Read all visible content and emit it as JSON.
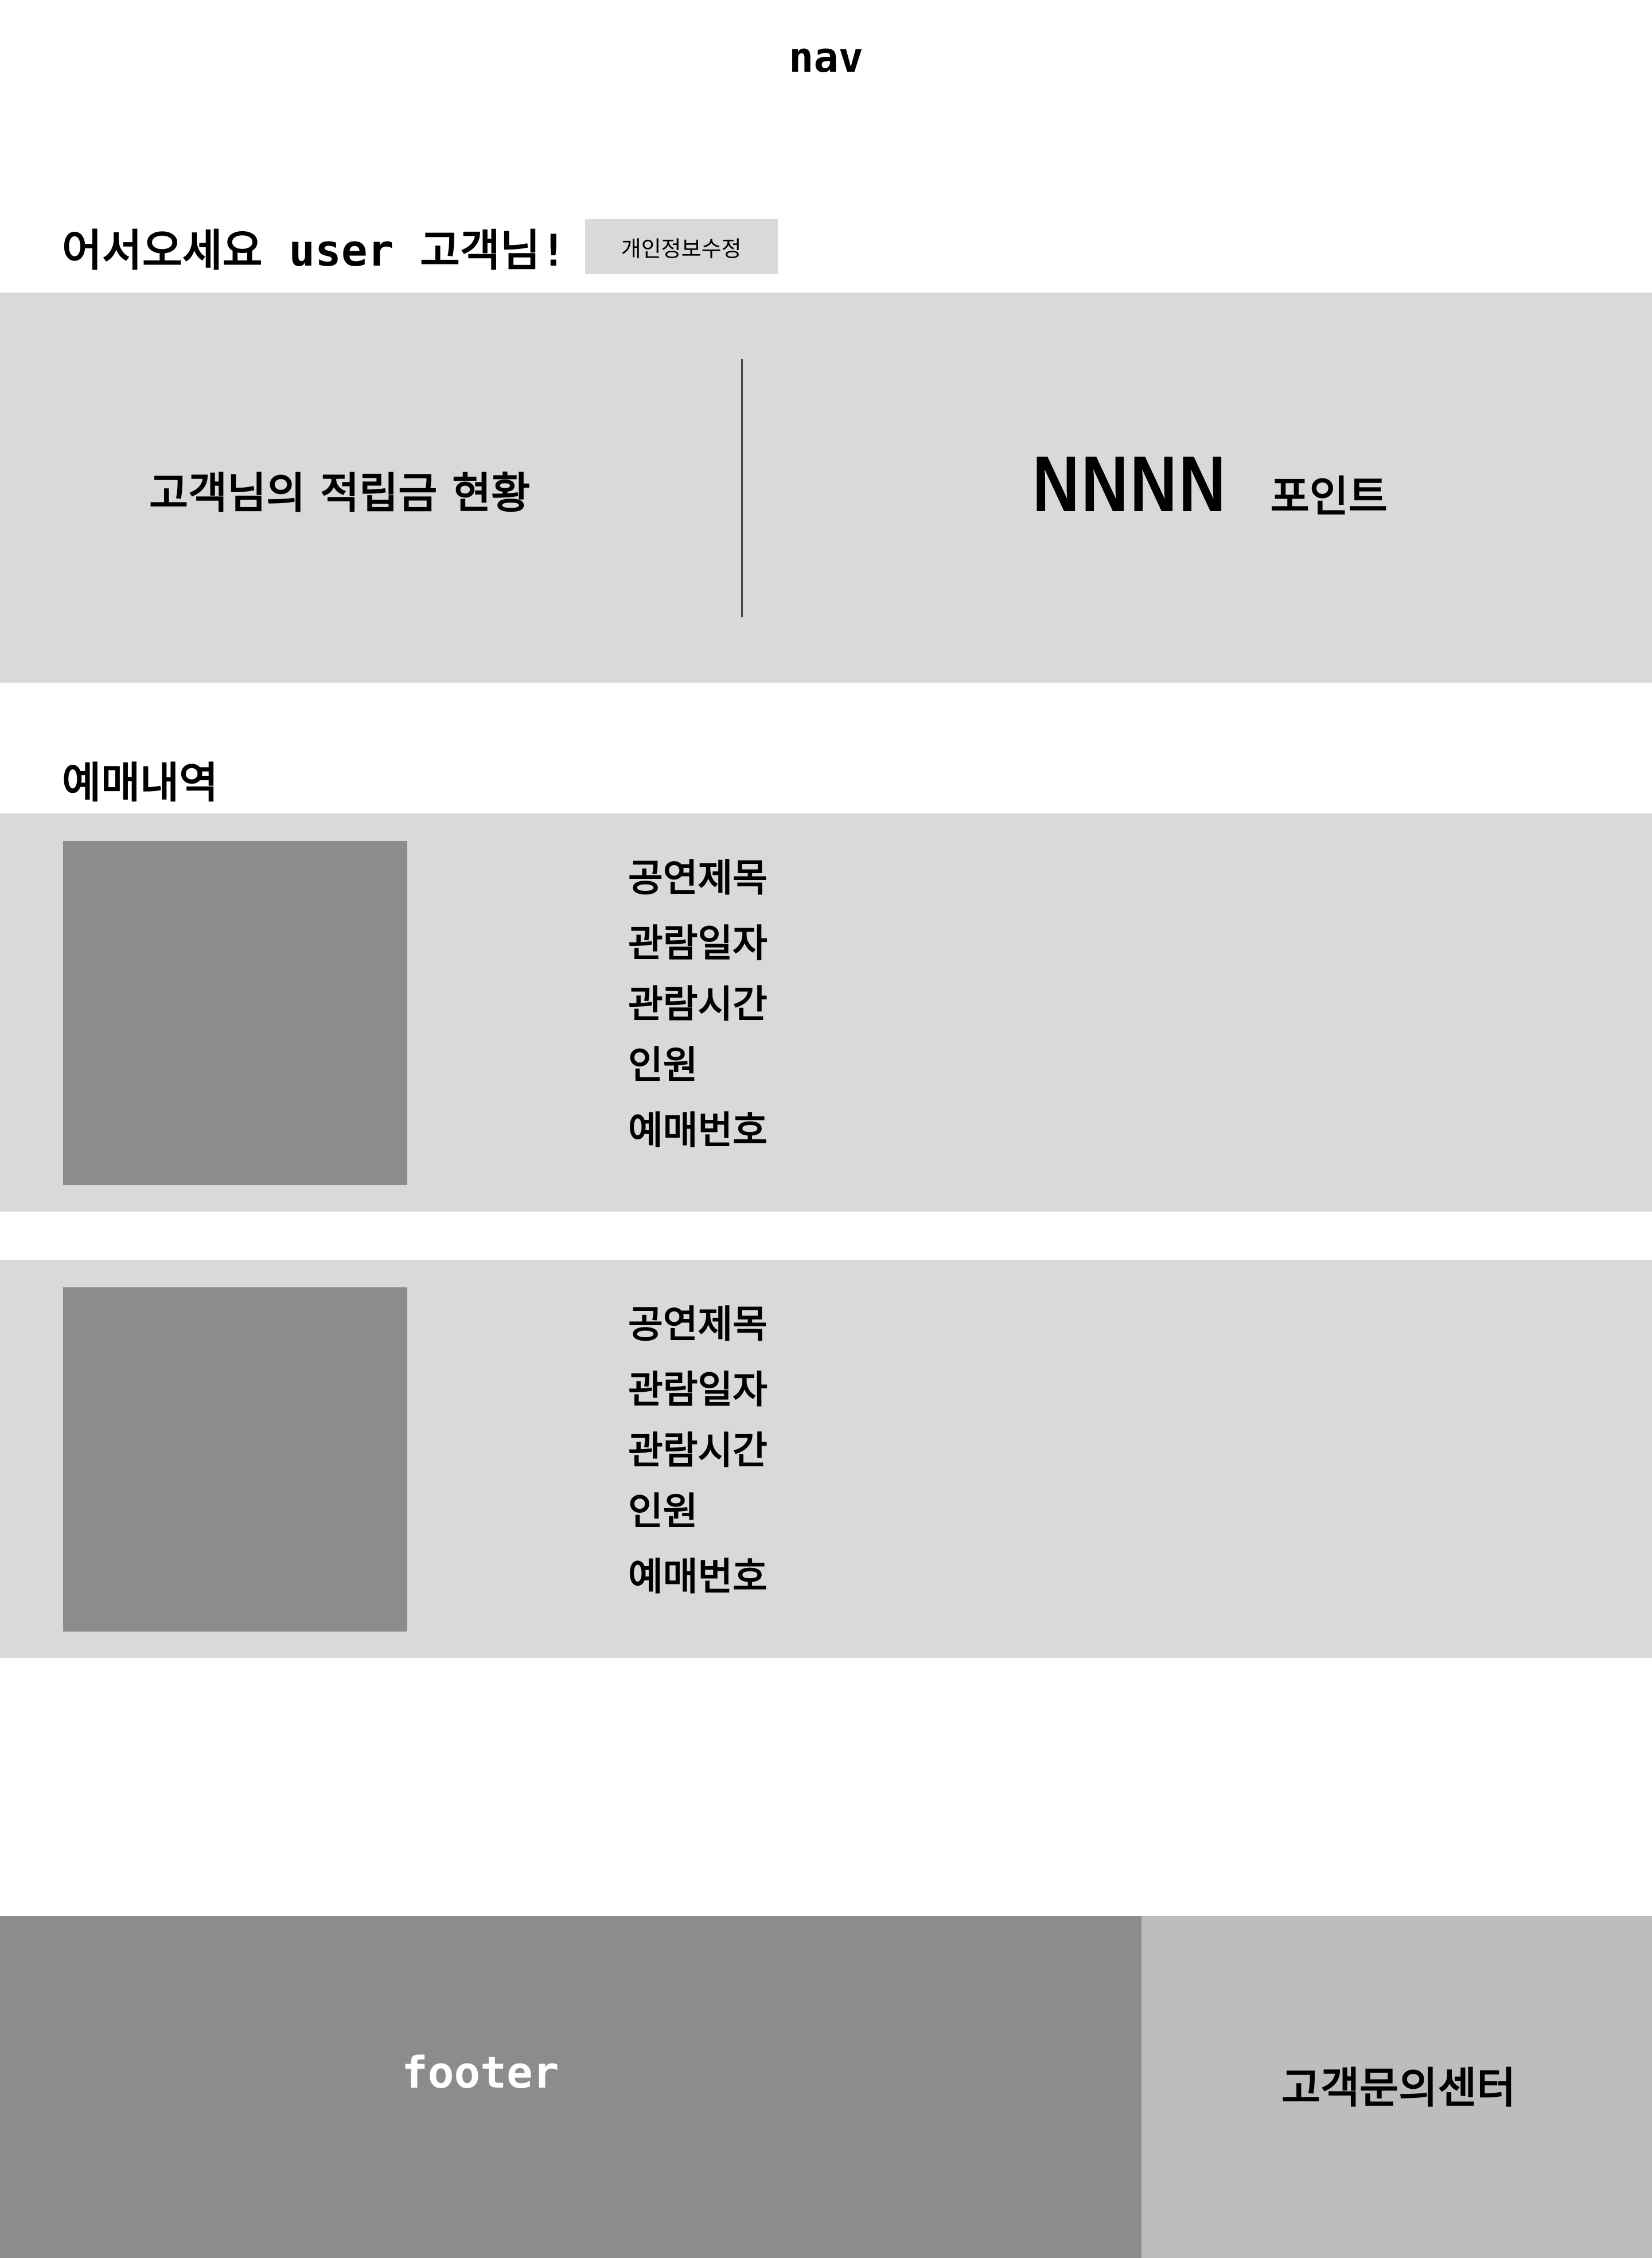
{
  "nav": {
    "label": "nav"
  },
  "greeting": {
    "text": "어서오세요 user 고객님!",
    "edit_profile_label": "개인정보수정"
  },
  "points": {
    "label": "고객님의 적립금 현황",
    "value": "NNNN",
    "unit": "포인트"
  },
  "booking": {
    "title": "예매내역",
    "items": [
      {
        "fields": [
          "공연제목",
          "관람일자",
          "관람시간",
          "인원",
          "예매번호"
        ]
      },
      {
        "fields": [
          "공연제목",
          "관람일자",
          "관람시간",
          "인원",
          "예매번호"
        ]
      }
    ]
  },
  "footer": {
    "label": "footer",
    "support_label": "고객문의센터"
  },
  "colors": {
    "panel": "#d9d9d9",
    "placeholder": "#8c8c8c",
    "support_panel": "#bdbdbd",
    "footer_text": "#ffffff"
  }
}
